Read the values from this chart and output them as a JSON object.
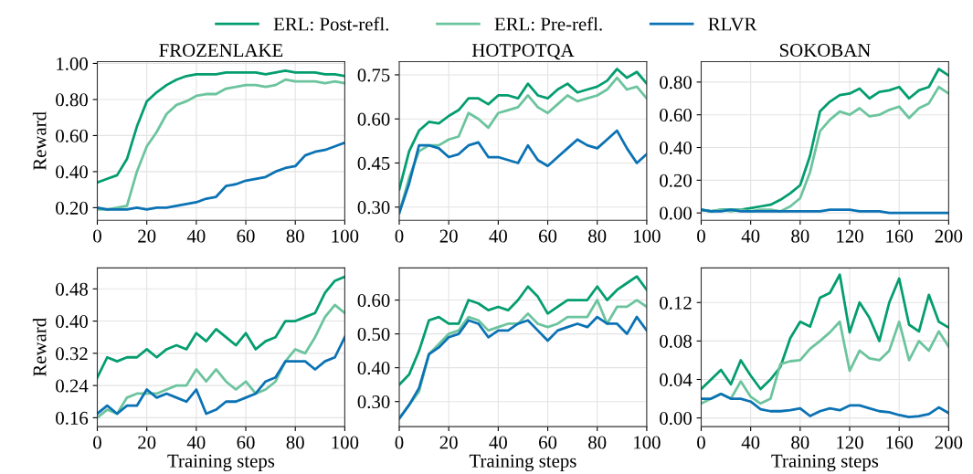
{
  "chart_data": [
    {
      "type": "line",
      "title": "FROZENLAKE",
      "ylabel": "Reward",
      "legend": "top",
      "grid": true,
      "x": [
        0,
        4,
        8,
        12,
        16,
        20,
        24,
        28,
        32,
        36,
        40,
        44,
        48,
        52,
        56,
        60,
        64,
        68,
        72,
        76,
        80,
        84,
        88,
        92,
        96,
        100
      ],
      "xlim": [
        0,
        100
      ],
      "xticks": [
        0,
        20,
        40,
        60,
        80,
        100
      ],
      "ylim": [
        0.13,
        1.01
      ],
      "yticks": [
        {
          "value": 0.2,
          "label": "0.20"
        },
        {
          "value": 0.4,
          "label": "0.40"
        },
        {
          "value": 0.6,
          "label": "0.60"
        },
        {
          "value": 0.8,
          "label": "0.80"
        },
        {
          "value": 1.0,
          "label": "1.00"
        }
      ],
      "series": [
        {
          "name": "ERL: Post-refl.",
          "color": "#049d6f",
          "values": [
            0.34,
            0.36,
            0.38,
            0.47,
            0.65,
            0.79,
            0.84,
            0.88,
            0.91,
            0.93,
            0.94,
            0.94,
            0.94,
            0.95,
            0.95,
            0.95,
            0.95,
            0.94,
            0.95,
            0.96,
            0.95,
            0.95,
            0.95,
            0.94,
            0.94,
            0.93
          ]
        },
        {
          "name": "ERL: Pre-refl.",
          "color": "#6cc49e",
          "values": [
            0.19,
            0.19,
            0.2,
            0.21,
            0.4,
            0.54,
            0.62,
            0.72,
            0.77,
            0.79,
            0.82,
            0.83,
            0.83,
            0.86,
            0.87,
            0.88,
            0.88,
            0.87,
            0.88,
            0.91,
            0.9,
            0.9,
            0.9,
            0.89,
            0.9,
            0.89
          ]
        },
        {
          "name": "RLVR",
          "color": "#0b72b4",
          "values": [
            0.2,
            0.19,
            0.19,
            0.19,
            0.2,
            0.19,
            0.2,
            0.2,
            0.21,
            0.22,
            0.23,
            0.25,
            0.26,
            0.32,
            0.33,
            0.35,
            0.36,
            0.37,
            0.4,
            0.42,
            0.43,
            0.49,
            0.51,
            0.52,
            0.54,
            0.56
          ]
        }
      ]
    },
    {
      "type": "line",
      "title": "HOTPOTQA",
      "grid": true,
      "x": [
        0,
        4,
        8,
        12,
        16,
        20,
        24,
        28,
        32,
        36,
        40,
        44,
        48,
        52,
        56,
        60,
        64,
        68,
        72,
        76,
        80,
        84,
        88,
        92,
        96,
        100
      ],
      "xlim": [
        0,
        100
      ],
      "xticks": [
        0,
        20,
        40,
        60,
        80,
        100
      ],
      "ylim": [
        0.255,
        0.795
      ],
      "yticks": [
        {
          "value": 0.3,
          "label": "0.30"
        },
        {
          "value": 0.45,
          "label": "0.45"
        },
        {
          "value": 0.6,
          "label": "0.60"
        },
        {
          "value": 0.75,
          "label": "0.75"
        }
      ],
      "series": [
        {
          "color": "#049d6f",
          "values": [
            0.36,
            0.49,
            0.56,
            0.59,
            0.585,
            0.61,
            0.63,
            0.67,
            0.67,
            0.65,
            0.68,
            0.68,
            0.67,
            0.72,
            0.68,
            0.67,
            0.7,
            0.72,
            0.69,
            0.7,
            0.71,
            0.73,
            0.77,
            0.74,
            0.76,
            0.72
          ]
        },
        {
          "color": "#6cc49e",
          "values": [
            0.28,
            0.4,
            0.49,
            0.51,
            0.51,
            0.53,
            0.54,
            0.62,
            0.6,
            0.57,
            0.62,
            0.63,
            0.64,
            0.68,
            0.64,
            0.62,
            0.65,
            0.68,
            0.66,
            0.67,
            0.68,
            0.7,
            0.74,
            0.7,
            0.71,
            0.67
          ]
        },
        {
          "color": "#0b72b4",
          "values": [
            0.28,
            0.38,
            0.51,
            0.51,
            0.5,
            0.47,
            0.48,
            0.51,
            0.52,
            0.47,
            0.47,
            0.46,
            0.45,
            0.51,
            0.46,
            0.44,
            0.47,
            0.5,
            0.53,
            0.51,
            0.5,
            0.53,
            0.56,
            0.5,
            0.45,
            0.48
          ]
        }
      ]
    },
    {
      "type": "line",
      "title": "SOKOBAN",
      "grid": true,
      "x": [
        0,
        8,
        16,
        24,
        32,
        40,
        48,
        56,
        64,
        72,
        80,
        88,
        96,
        104,
        112,
        120,
        128,
        136,
        144,
        152,
        160,
        168,
        176,
        184,
        192,
        200
      ],
      "xlim": [
        0,
        200
      ],
      "xticks": [
        0,
        40,
        80,
        120,
        160,
        200
      ],
      "ylim": [
        -0.045,
        0.925
      ],
      "yticks": [
        {
          "value": 0,
          "label": "0.00"
        },
        {
          "value": 0.2,
          "label": "0.20"
        },
        {
          "value": 0.4,
          "label": "0.40"
        },
        {
          "value": 0.6,
          "label": "0.60"
        },
        {
          "value": 0.8,
          "label": "0.80"
        }
      ],
      "series": [
        {
          "color": "#049d6f",
          "values": [
            0.02,
            0.01,
            0.02,
            0.02,
            0.02,
            0.03,
            0.04,
            0.05,
            0.08,
            0.12,
            0.17,
            0.35,
            0.62,
            0.68,
            0.72,
            0.73,
            0.76,
            0.7,
            0.74,
            0.75,
            0.77,
            0.7,
            0.75,
            0.77,
            0.88,
            0.84
          ]
        },
        {
          "color": "#6cc49e",
          "values": [
            0.02,
            0.01,
            0.02,
            0.01,
            0.02,
            0.01,
            0.02,
            0.02,
            0.01,
            0.04,
            0.09,
            0.25,
            0.5,
            0.57,
            0.62,
            0.6,
            0.64,
            0.59,
            0.6,
            0.63,
            0.65,
            0.58,
            0.64,
            0.67,
            0.77,
            0.73
          ]
        },
        {
          "color": "#0b72b4",
          "values": [
            0.02,
            0.01,
            0.01,
            0.02,
            0.01,
            0.01,
            0.01,
            0.01,
            0.01,
            0.01,
            0.01,
            0.01,
            0.01,
            0.02,
            0.02,
            0.02,
            0.01,
            0.01,
            0.01,
            0.0,
            0.0,
            0.0,
            0.0,
            0.0,
            0.0,
            0.0
          ]
        }
      ]
    },
    {
      "type": "line",
      "ylabel": "Reward",
      "xlabel": "Training steps",
      "grid": true,
      "x": [
        0,
        4,
        8,
        12,
        16,
        20,
        24,
        28,
        32,
        36,
        40,
        44,
        48,
        52,
        56,
        60,
        64,
        68,
        72,
        76,
        80,
        84,
        88,
        92,
        96,
        100
      ],
      "xlim": [
        0,
        100
      ],
      "xticks": [
        0,
        20,
        40,
        60,
        80,
        100
      ],
      "ylim": [
        0.138,
        0.532
      ],
      "yticks": [
        0.16,
        0.24,
        0.32,
        {
          "value": 0.4,
          "label": "0.40"
        },
        0.48
      ],
      "series": [
        {
          "color": "#049d6f",
          "values": [
            0.26,
            0.31,
            0.3,
            0.31,
            0.31,
            0.33,
            0.31,
            0.33,
            0.34,
            0.33,
            0.37,
            0.35,
            0.38,
            0.36,
            0.34,
            0.37,
            0.33,
            0.35,
            0.36,
            0.4,
            0.4,
            0.41,
            0.42,
            0.47,
            0.5,
            0.51
          ]
        },
        {
          "color": "#6cc49e",
          "values": [
            0.16,
            0.18,
            0.17,
            0.21,
            0.22,
            0.22,
            0.22,
            0.23,
            0.24,
            0.24,
            0.28,
            0.25,
            0.28,
            0.25,
            0.23,
            0.25,
            0.22,
            0.23,
            0.25,
            0.3,
            0.33,
            0.32,
            0.36,
            0.41,
            0.44,
            0.42
          ]
        },
        {
          "color": "#0b72b4",
          "values": [
            0.17,
            0.19,
            0.17,
            0.19,
            0.19,
            0.23,
            0.21,
            0.22,
            0.21,
            0.2,
            0.23,
            0.17,
            0.18,
            0.2,
            0.2,
            0.21,
            0.22,
            0.25,
            0.26,
            0.3,
            0.3,
            0.3,
            0.28,
            0.3,
            0.31,
            0.36
          ]
        }
      ]
    },
    {
      "type": "line",
      "xlabel": "Training steps",
      "grid": true,
      "x": [
        0,
        4,
        8,
        12,
        16,
        20,
        24,
        28,
        32,
        36,
        40,
        44,
        48,
        52,
        56,
        60,
        64,
        68,
        72,
        76,
        80,
        84,
        88,
        92,
        96,
        100
      ],
      "xlim": [
        0,
        100
      ],
      "xticks": [
        0,
        20,
        40,
        60,
        80,
        100
      ],
      "ylim": [
        0.226,
        0.695
      ],
      "yticks": [
        {
          "value": 0.3,
          "label": "0.30"
        },
        {
          "value": 0.4,
          "label": "0.40"
        },
        {
          "value": 0.5,
          "label": "0.50"
        },
        {
          "value": 0.6,
          "label": "0.60"
        }
      ],
      "series": [
        {
          "color": "#049d6f",
          "values": [
            0.35,
            0.38,
            0.45,
            0.54,
            0.55,
            0.53,
            0.53,
            0.6,
            0.59,
            0.57,
            0.58,
            0.57,
            0.6,
            0.64,
            0.61,
            0.56,
            0.58,
            0.6,
            0.6,
            0.6,
            0.64,
            0.6,
            0.63,
            0.65,
            0.67,
            0.63
          ]
        },
        {
          "color": "#6cc49e",
          "values": [
            0.25,
            0.29,
            0.33,
            0.44,
            0.47,
            0.5,
            0.51,
            0.55,
            0.54,
            0.51,
            0.52,
            0.53,
            0.53,
            0.56,
            0.53,
            0.52,
            0.53,
            0.55,
            0.55,
            0.55,
            0.6,
            0.53,
            0.58,
            0.58,
            0.6,
            0.58
          ]
        },
        {
          "color": "#0b72b4",
          "values": [
            0.25,
            0.29,
            0.34,
            0.44,
            0.46,
            0.49,
            0.5,
            0.54,
            0.53,
            0.49,
            0.51,
            0.51,
            0.53,
            0.54,
            0.51,
            0.48,
            0.51,
            0.52,
            0.53,
            0.52,
            0.55,
            0.53,
            0.53,
            0.5,
            0.55,
            0.51
          ]
        }
      ]
    },
    {
      "type": "line",
      "xlabel": "Training steps",
      "grid": true,
      "x": [
        0,
        8,
        16,
        24,
        32,
        40,
        48,
        56,
        64,
        72,
        80,
        88,
        96,
        104,
        112,
        120,
        128,
        136,
        144,
        152,
        160,
        168,
        176,
        184,
        192,
        200
      ],
      "xlim": [
        0,
        200
      ],
      "xticks": [
        0,
        40,
        80,
        120,
        160,
        200
      ],
      "ylim": [
        -0.009,
        0.156
      ],
      "yticks": [
        {
          "value": 0,
          "label": "0.00"
        },
        {
          "value": 0.04,
          "label": "0.04"
        },
        {
          "value": 0.08,
          "label": "0.08"
        },
        {
          "value": 0.12,
          "label": "0.12"
        }
      ],
      "series": [
        {
          "color": "#049d6f",
          "values": [
            0.03,
            0.04,
            0.05,
            0.035,
            0.06,
            0.044,
            0.03,
            0.04,
            0.053,
            0.083,
            0.1,
            0.095,
            0.125,
            0.13,
            0.149,
            0.089,
            0.12,
            0.104,
            0.08,
            0.12,
            0.145,
            0.097,
            0.09,
            0.128,
            0.1,
            0.094
          ]
        },
        {
          "color": "#6cc49e",
          "values": [
            0.015,
            0.02,
            0.025,
            0.02,
            0.038,
            0.022,
            0.015,
            0.02,
            0.056,
            0.059,
            0.06,
            0.072,
            0.08,
            0.089,
            0.1,
            0.049,
            0.07,
            0.062,
            0.06,
            0.07,
            0.1,
            0.06,
            0.08,
            0.07,
            0.09,
            0.074
          ]
        },
        {
          "color": "#0b72b4",
          "values": [
            0.02,
            0.02,
            0.025,
            0.02,
            0.02,
            0.017,
            0.009,
            0.007,
            0.007,
            0.008,
            0.01,
            0.002,
            0.007,
            0.01,
            0.008,
            0.013,
            0.013,
            0.01,
            0.007,
            0.006,
            0.003,
            0.001,
            0.002,
            0.004,
            0.011,
            0.005
          ]
        }
      ]
    }
  ]
}
